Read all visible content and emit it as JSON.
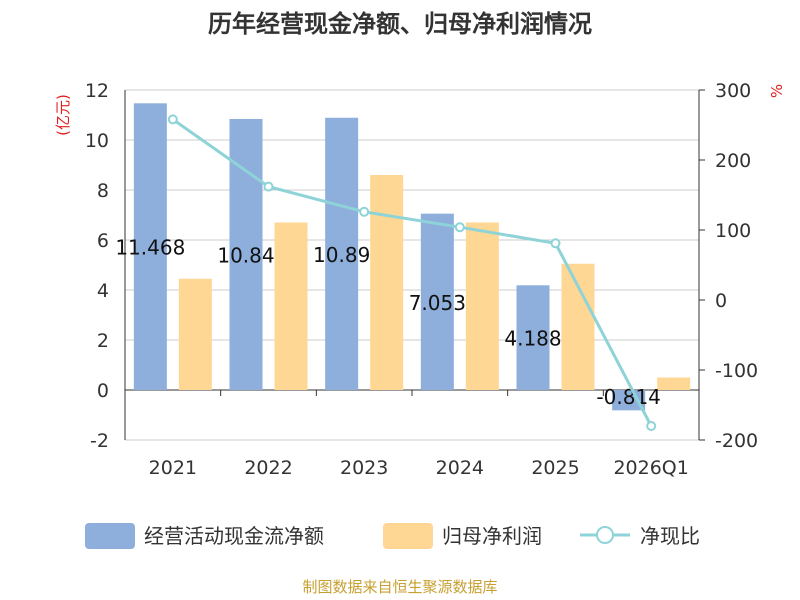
{
  "chart_data": {
    "type": "bar",
    "title": "历年经营现金净额、归母净利润情况",
    "categories": [
      "2021",
      "2022",
      "2023",
      "2024",
      "2025",
      "2026Q1"
    ],
    "series": [
      {
        "name": "经营活动现金流净额",
        "type": "bar",
        "axis": "left",
        "color": "#8eaedb",
        "values": [
          11.468,
          10.842,
          10.89,
          7.053,
          4.188,
          -0.814
        ],
        "labels": [
          "11.468",
          "10.84",
          "10.89",
          "7.053",
          "4.188",
          "-0.814"
        ]
      },
      {
        "name": "归母净利润",
        "type": "bar",
        "axis": "left",
        "color": "#ffd794",
        "values": [
          4.45,
          6.7,
          8.6,
          6.7,
          5.05,
          0.5
        ]
      },
      {
        "name": "净现比",
        "type": "line",
        "axis": "right",
        "color": "#8dd3d8",
        "values": [
          258,
          162,
          126,
          104,
          81,
          -180
        ]
      }
    ],
    "y_left": {
      "label": "(亿元)",
      "min": -2,
      "max": 12,
      "ticks": [
        "-2",
        "0",
        "2",
        "4",
        "6",
        "8",
        "10",
        "12"
      ],
      "tick_values": [
        -2,
        0,
        2,
        4,
        6,
        8,
        10,
        12
      ]
    },
    "y_right": {
      "label": "%",
      "min": -200,
      "max": 300,
      "ticks": [
        "-200",
        "-100",
        "0",
        "100",
        "200",
        "300"
      ],
      "tick_values": [
        -200,
        -100,
        0,
        100,
        200,
        300
      ]
    },
    "grid": true,
    "legend_position": "bottom"
  },
  "footer": "制图数据来自恒生聚源数据库"
}
